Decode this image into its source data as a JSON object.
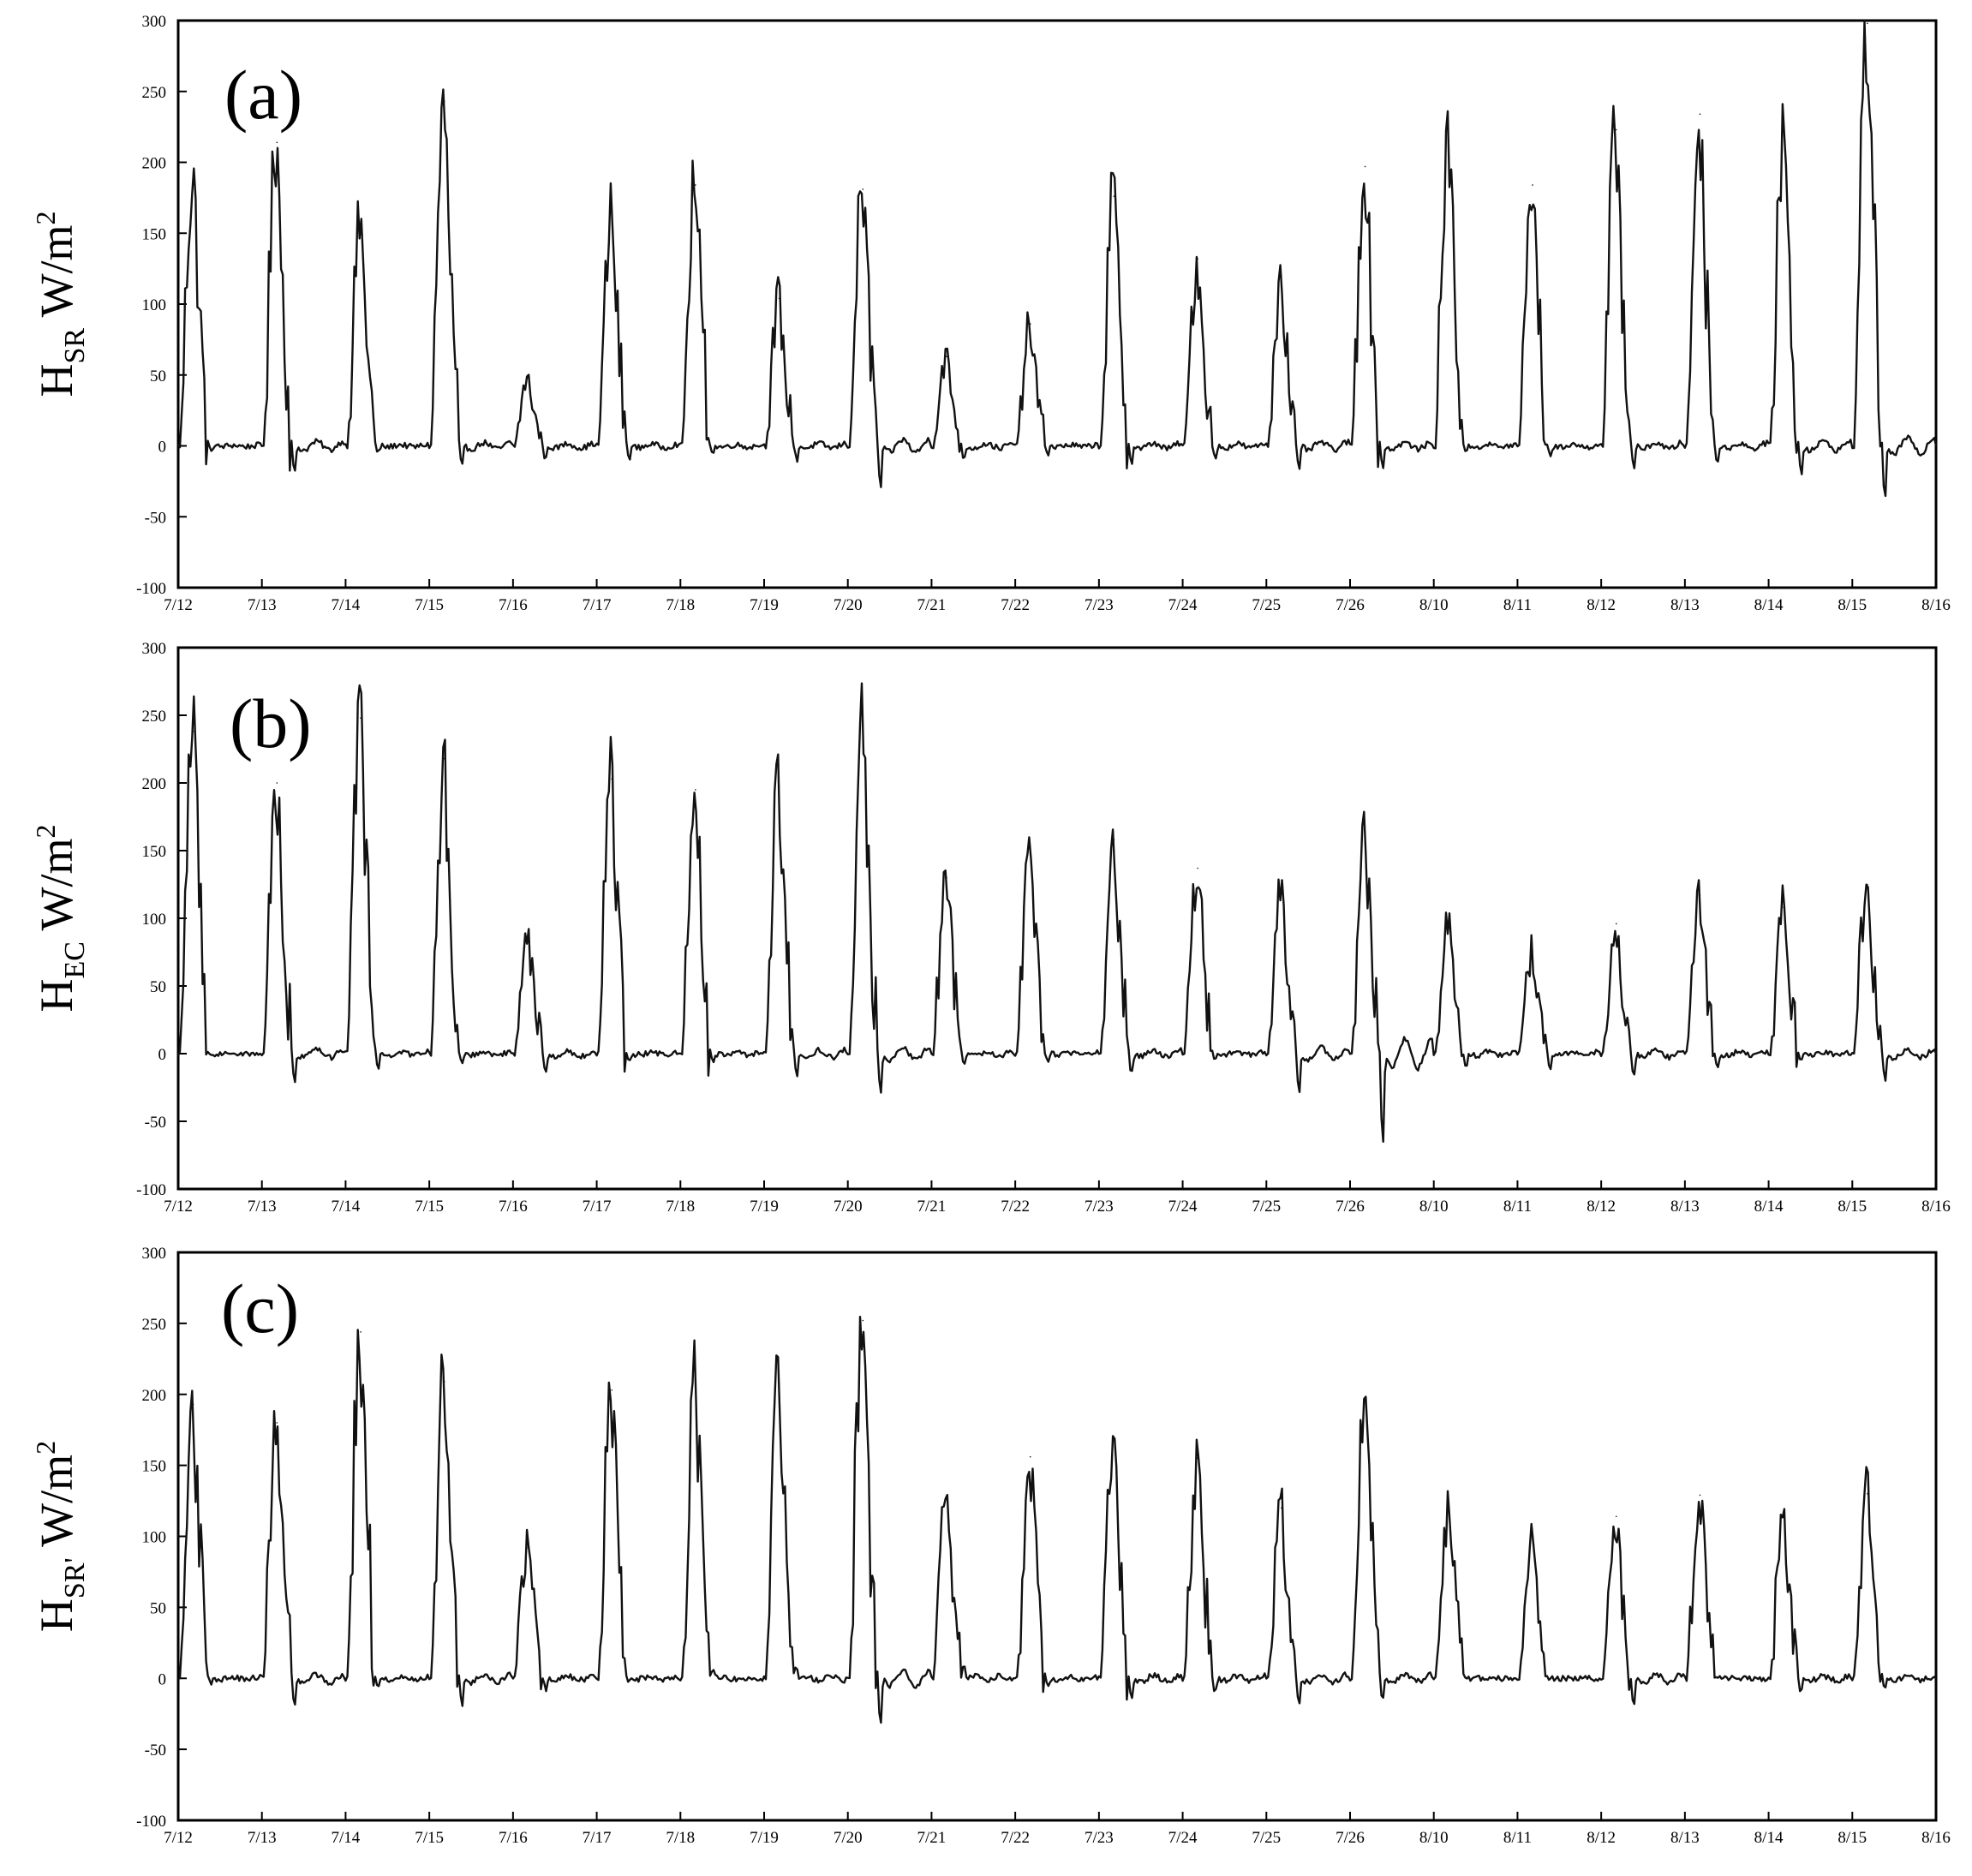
{
  "chart_data": [
    {
      "type": "line",
      "panel_label": "(a)",
      "ylabel": {
        "main": "H",
        "sub": "SR",
        "unit": " W/m",
        "sup": "2"
      },
      "xlabel": "",
      "ylim": [
        -100,
        300
      ],
      "yticks": [
        -100,
        -50,
        0,
        50,
        100,
        150,
        200,
        250,
        300
      ],
      "categories": [
        "7/12",
        "7/13",
        "7/14",
        "7/15",
        "7/16",
        "7/17",
        "7/18",
        "7/19",
        "7/20",
        "7/21",
        "7/22",
        "7/23",
        "7/24",
        "7/25",
        "7/26",
        "8/10",
        "8/11",
        "8/12",
        "8/13",
        "8/14",
        "8/15",
        "8/16"
      ],
      "x_unit": "day index (0 = 7/12 at first tick, 21 = 8/16 at last tick)",
      "grid": false,
      "series": [
        {
          "daily_peaks": [
            193,
            214,
            158,
            243,
            48,
            163,
            184,
            104,
            181,
            63,
            86,
            176,
            132,
            120,
            197,
            216,
            184,
            223,
            234,
            227,
            298
          ],
          "daily_minima": [
            -3,
            -20,
            -5,
            -15,
            -10,
            -8,
            -5,
            -10,
            -30,
            -10,
            -5,
            -12,
            -10,
            -18,
            -15,
            -5,
            -8,
            -15,
            -12,
            -20,
            -38
          ]
        }
      ]
    },
    {
      "type": "line",
      "panel_label": "(b)",
      "ylabel": {
        "main": "H",
        "sub": "EC",
        "unit": " W/m",
        "sup": "2"
      },
      "xlabel": "",
      "ylim": [
        -100,
        300
      ],
      "yticks": [
        -100,
        -50,
        0,
        50,
        100,
        150,
        200,
        250,
        300
      ],
      "categories": [
        "7/12",
        "7/13",
        "7/14",
        "7/15",
        "7/16",
        "7/17",
        "7/18",
        "7/19",
        "7/20",
        "7/21",
        "7/22",
        "7/23",
        "7/24",
        "7/25",
        "7/26",
        "8/10",
        "8/11",
        "8/12",
        "8/13",
        "8/14",
        "8/15",
        "8/16"
      ],
      "x_unit": "day index (0 = 7/12 at first tick, 21 = 8/16 at last tick)",
      "grid": false,
      "series": [
        {
          "daily_peaks": [
            238,
            200,
            248,
            218,
            90,
            203,
            195,
            198,
            243,
            130,
            147,
            158,
            137,
            128,
            162,
            98,
            76,
            96,
            117,
            108,
            125
          ],
          "daily_minima": [
            -2,
            -20,
            -10,
            -8,
            -12,
            -5,
            -5,
            -18,
            -30,
            -8,
            -5,
            -15,
            -5,
            -30,
            -70,
            -10,
            -10,
            -18,
            -12,
            -5,
            -20
          ]
        }
      ]
    },
    {
      "type": "line",
      "panel_label": "(c)",
      "ylabel": {
        "main": "H",
        "sub": "SR'",
        "unit": " W/m",
        "sup": "2"
      },
      "xlabel": "",
      "ylim": [
        -100,
        300
      ],
      "yticks": [
        -100,
        -50,
        0,
        50,
        100,
        150,
        200,
        250,
        300
      ],
      "categories": [
        "7/12",
        "7/13",
        "7/14",
        "7/15",
        "7/16",
        "7/17",
        "7/18",
        "7/19",
        "7/20",
        "7/21",
        "7/22",
        "7/23",
        "7/24",
        "7/25",
        "7/26",
        "8/10",
        "8/11",
        "8/12",
        "8/13",
        "8/14",
        "8/15",
        "8/16"
      ],
      "x_unit": "day index (0 = 7/12 at first tick, 21 = 8/16 at last tick)",
      "grid": false,
      "series": [
        {
          "daily_peaks": [
            193,
            180,
            244,
            209,
            92,
            203,
            210,
            208,
            252,
            127,
            156,
            170,
            155,
            120,
            197,
            124,
            98,
            114,
            129,
            114,
            130
          ],
          "daily_minima": [
            -3,
            -18,
            -5,
            -20,
            -8,
            -3,
            5,
            8,
            -33,
            10,
            -5,
            -15,
            -10,
            -18,
            -15,
            0,
            0,
            -20,
            2,
            -10,
            -8
          ]
        }
      ]
    }
  ]
}
